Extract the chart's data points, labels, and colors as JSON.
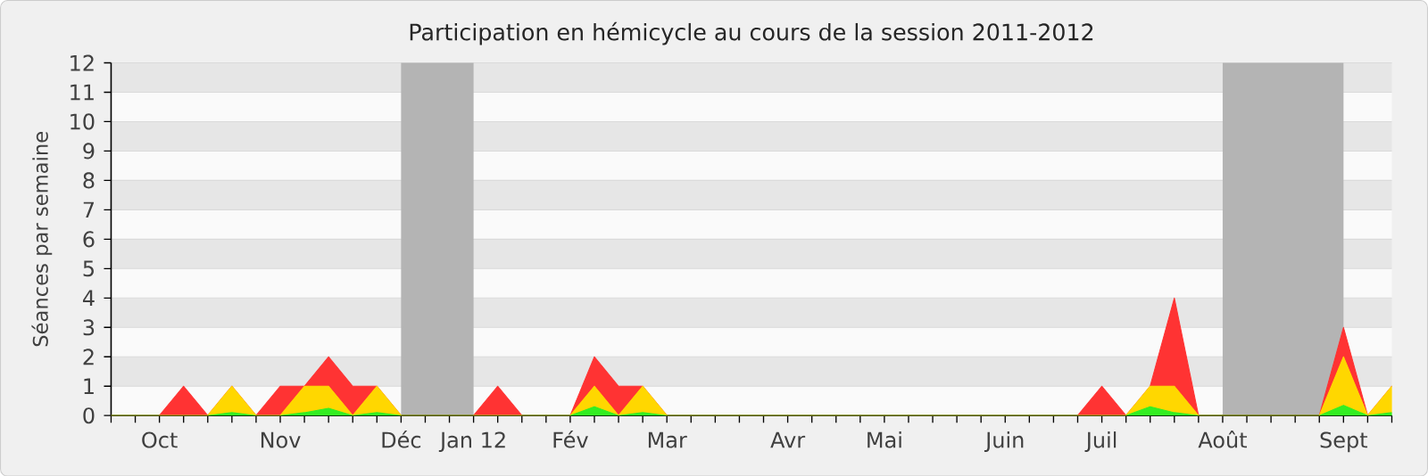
{
  "chart_data": {
    "type": "area",
    "title": "Participation en hémicycle au cours de la session 2011-2012",
    "ylabel": "Séances par semaine",
    "categories": [
      null,
      null,
      "Oct",
      null,
      null,
      null,
      null,
      "Nov",
      null,
      null,
      null,
      null,
      "Déc",
      null,
      null,
      "Jan 12",
      null,
      null,
      null,
      "Fév",
      null,
      null,
      null,
      "Mar",
      null,
      null,
      null,
      null,
      "Avr",
      null,
      null,
      null,
      "Mai",
      null,
      null,
      null,
      null,
      "Juin",
      null,
      null,
      null,
      "Juil",
      null,
      null,
      null,
      null,
      "Août",
      null,
      null,
      null,
      null,
      "Sept",
      null,
      null
    ],
    "stacked": true,
    "series": [
      {
        "color": "#33ee22",
        "values": [
          0,
          0,
          0,
          0,
          0,
          0.1,
          0,
          0,
          0.1,
          0.25,
          0,
          0.1,
          0,
          0,
          0,
          0,
          0,
          0,
          0,
          0,
          0.3,
          0,
          0.1,
          0,
          0,
          0,
          0,
          0,
          0,
          0,
          0,
          0,
          0,
          0,
          0,
          0,
          0,
          0,
          0,
          0,
          0,
          0,
          0,
          0.3,
          0.1,
          0,
          0,
          0,
          0,
          0,
          0,
          0.35,
          0,
          0.1
        ]
      },
      {
        "color": "#ffd700",
        "values": [
          0,
          0,
          0,
          0,
          0,
          0.9,
          0,
          0,
          0.9,
          0.75,
          0,
          0.9,
          0,
          0,
          0,
          0,
          0,
          0,
          0,
          0,
          0.7,
          0,
          0.9,
          0,
          0,
          0,
          0,
          0,
          0,
          0,
          0,
          0,
          0,
          0,
          0,
          0,
          0,
          0,
          0,
          0,
          0,
          0,
          0,
          0.7,
          0.9,
          0,
          0,
          0,
          0,
          0,
          0,
          1.65,
          0,
          0.9
        ]
      },
      {
        "color": "#ff3333",
        "values": [
          0,
          0,
          0,
          1,
          0,
          0,
          0,
          1,
          0,
          1,
          1,
          0,
          0,
          0,
          0,
          0,
          1,
          0,
          0,
          0,
          1,
          1,
          0,
          0,
          0,
          0,
          0,
          0,
          0,
          0,
          0,
          0,
          0,
          0,
          0,
          0,
          0,
          0,
          0,
          0,
          0,
          1,
          0,
          0,
          3,
          0,
          0,
          0,
          0,
          0,
          0,
          1,
          0,
          0
        ]
      }
    ],
    "ylim": [
      0,
      12
    ],
    "yticks": [
      0,
      1,
      2,
      3,
      4,
      5,
      6,
      7,
      8,
      9,
      10,
      11,
      12
    ],
    "grid": "y",
    "bands": [
      {
        "axis": "x",
        "from": "Déc",
        "to": "Jan 12",
        "color": "#b4b4b4"
      },
      {
        "axis": "x",
        "from": "Août",
        "to": "Sept",
        "color": "#b4b4b4"
      }
    ]
  }
}
